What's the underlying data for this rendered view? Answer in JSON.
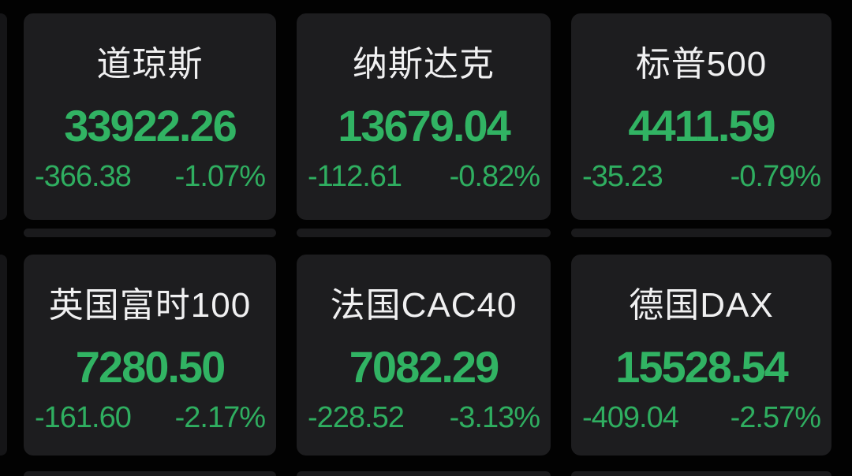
{
  "page": {
    "background_color": "#020202",
    "card_color": "#1d1d1f",
    "title_color": "#f0f0f1",
    "down_color": "#2fae60"
  },
  "indices": [
    {
      "name": "道琼斯",
      "value": "33922.26",
      "change": "-366.38",
      "change_pct": "-1.07%"
    },
    {
      "name": "纳斯达克",
      "value": "13679.04",
      "change": "-112.61",
      "change_pct": "-0.82%"
    },
    {
      "name": "标普500",
      "value": "4411.59",
      "change": "-35.23",
      "change_pct": "-0.79%"
    },
    {
      "name": "英国富时100",
      "value": "7280.50",
      "change": "-161.60",
      "change_pct": "-2.17%"
    },
    {
      "name": "法国CAC40",
      "value": "7082.29",
      "change": "-228.52",
      "change_pct": "-3.13%"
    },
    {
      "name": "德国DAX",
      "value": "15528.54",
      "change": "-409.04",
      "change_pct": "-2.57%"
    }
  ]
}
